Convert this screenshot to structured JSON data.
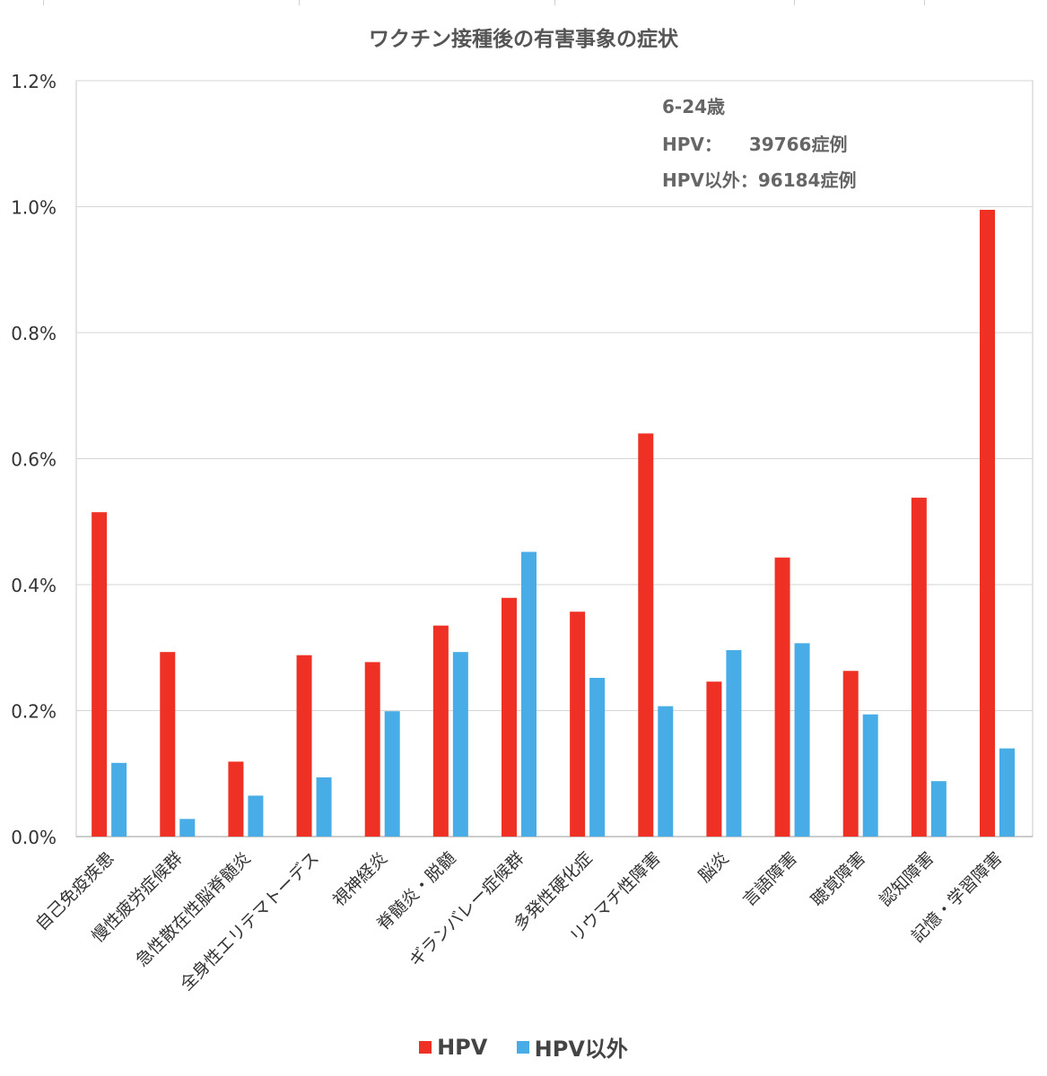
{
  "chart_data": {
    "type": "bar",
    "title": "ワクチン接種後の有害事象の症状",
    "xlabel": "",
    "ylabel": "",
    "ylim": [
      0,
      1.2
    ],
    "yticks": [
      "0.0%",
      "0.2%",
      "0.4%",
      "0.6%",
      "0.8%",
      "1.0%",
      "1.2%"
    ],
    "grid": true,
    "legend_position": "bottom",
    "categories": [
      "自己免疫疾患",
      "慢性疲労症候群",
      "急性散在性脳脊髄炎",
      "全身性エリテマトーデス",
      "視神経炎",
      "脊髄炎・脱髄",
      "ギランバレー症候群",
      "多発性硬化症",
      "リウマチ性障害",
      "脳炎",
      "言語障害",
      "聴覚障害",
      "認知障害",
      "記憶・学習障害"
    ],
    "series": [
      {
        "name": "HPV",
        "color": "#ee3124",
        "values": [
          0.515,
          0.293,
          0.119,
          0.288,
          0.277,
          0.335,
          0.379,
          0.357,
          0.64,
          0.246,
          0.443,
          0.263,
          0.538,
          0.995
        ]
      },
      {
        "name": "HPV以外",
        "color": "#48ace6",
        "values": [
          0.117,
          0.028,
          0.065,
          0.094,
          0.199,
          0.293,
          0.452,
          0.252,
          0.207,
          0.296,
          0.307,
          0.194,
          0.088,
          0.14
        ]
      }
    ],
    "annotation": {
      "line1": "6-24歳",
      "line2": "HPV：　　39766症例",
      "line3": "HPV以外：96184症例"
    }
  }
}
